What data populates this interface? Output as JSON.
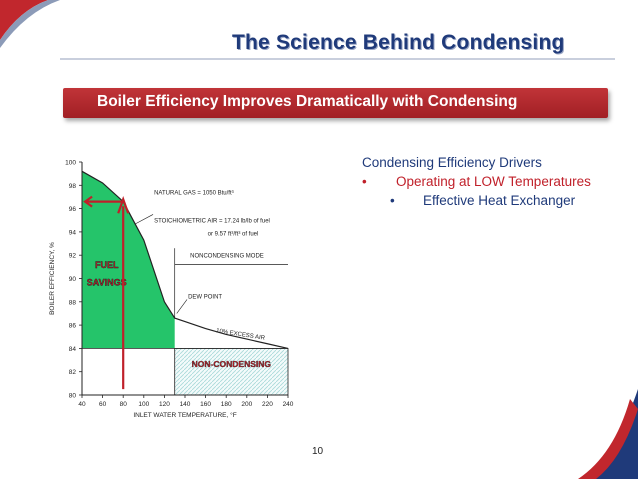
{
  "slide": {
    "title": "The Science Behind Condensing",
    "banner": "Boiler Efficiency Improves Dramatically with Condensing",
    "page_number": "10"
  },
  "bullets": {
    "heading": "Condensing Efficiency Drivers",
    "level1_marker": "•",
    "level1": "Operating at LOW Temperatures",
    "level2_marker": "•",
    "level2": "Effective Heat Exchanger"
  },
  "colors": {
    "title_blue": "#1f3a7a",
    "banner_red": "#b0262b",
    "fuel_savings_green": "#25c46a",
    "arrow_red": "#c0202a"
  },
  "chart_data": {
    "type": "area",
    "xlabel": "INLET WATER TEMPERATURE, °F",
    "ylabel": "BOILER EFFICIENCY, %",
    "xlim": [
      40,
      240
    ],
    "ylim": [
      80,
      100
    ],
    "xticks": [
      "40",
      "60",
      "80",
      "100",
      "120",
      "140",
      "160",
      "180",
      "200",
      "220",
      "240"
    ],
    "yticks": [
      "80",
      "82",
      "84",
      "86",
      "88",
      "90",
      "92",
      "94",
      "96",
      "98",
      "100"
    ],
    "efficiency_curve": {
      "x": [
        40,
        60,
        80,
        100,
        120,
        130,
        140,
        160,
        180,
        200,
        220,
        240
      ],
      "y": [
        99.2,
        98.2,
        96.6,
        93.3,
        88.0,
        86.6,
        86.3,
        85.7,
        85.2,
        84.8,
        84.4,
        84.0
      ]
    },
    "baseline_efficiency": 84,
    "annotations": {
      "natural_gas": "NATURAL GAS = 1050 Btu/ft³",
      "stoich_air_1": "STOICHIOMETRIC AIR = 17.24 lb/lb of fuel",
      "stoich_air_2": "or 9.57 ft³/ft³ of fuel",
      "noncondensing_mode": "NONCONDENSING MODE",
      "dew_point": "DEW POINT",
      "excess_air": "10% EXCESS AIR",
      "fuel_savings_1": "FUEL",
      "fuel_savings_2": "SAVINGS",
      "non_condensing": "NON-CONDENSING"
    },
    "noncondensing_range": [
      130,
      240
    ],
    "dew_point_temp": 130,
    "arrow_x": 80
  }
}
